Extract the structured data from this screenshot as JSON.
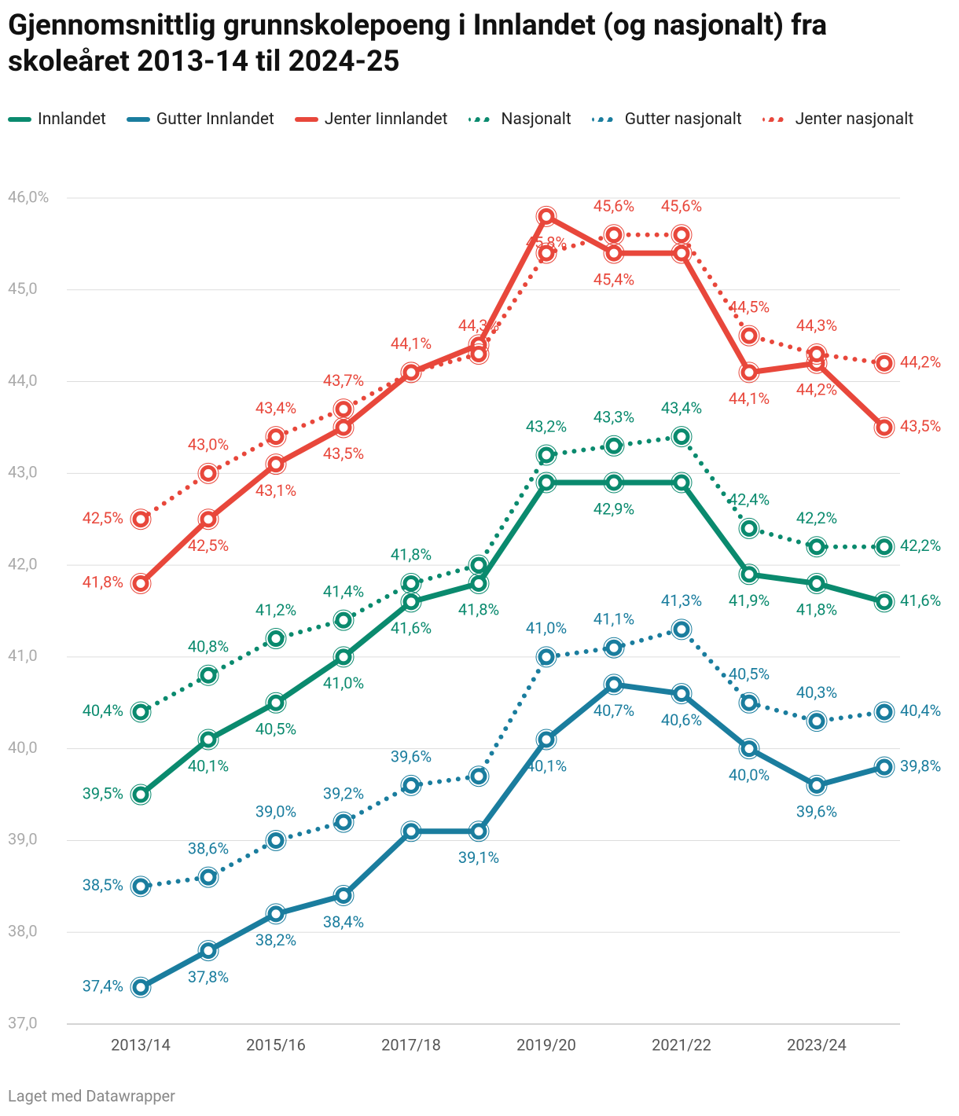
{
  "chart_data": {
    "type": "line",
    "title": "Gjennomsnittlig grunnskolepoeng i Innlandet (og nasjonalt) fra skoleåret 2013-14 til 2024-25",
    "footer": "Laget med Datawrapper",
    "categories": [
      "2013/14",
      null,
      "2015/16",
      null,
      "2017/18",
      null,
      "2019/20",
      null,
      "2021/22",
      null,
      "2023/24",
      null
    ],
    "ylim": [
      37,
      46
    ],
    "yticks": [
      {
        "value": 37,
        "label": "37,0"
      },
      {
        "value": 38,
        "label": "38,0"
      },
      {
        "value": 39,
        "label": "39,0"
      },
      {
        "value": 40,
        "label": "40,0"
      },
      {
        "value": 41,
        "label": "41,0"
      },
      {
        "value": 42,
        "label": "42,0"
      },
      {
        "value": 43,
        "label": "43,0"
      },
      {
        "value": 44,
        "label": "44,0"
      },
      {
        "value": 45,
        "label": "45,0"
      },
      {
        "value": 46,
        "label": "46,0%"
      }
    ],
    "grid": true,
    "series": [
      {
        "name": "Innlandet",
        "color": "#0a8a6e",
        "style": "solid",
        "values": [
          39.5,
          40.1,
          40.5,
          41.0,
          41.6,
          41.8,
          42.9,
          42.9,
          42.9,
          41.9,
          41.8,
          41.6
        ],
        "value_labels": [
          "39,5%",
          "40,1%",
          "40,5%",
          "41,0%",
          "41,6%",
          "41,8%",
          null,
          "42,9%",
          null,
          "41,9%",
          "41,8%",
          "41,6%"
        ]
      },
      {
        "name": "Gutter Innlandet",
        "color": "#1a7d9e",
        "style": "solid",
        "values": [
          37.4,
          37.8,
          38.2,
          38.4,
          39.1,
          39.1,
          40.1,
          40.7,
          40.6,
          40.0,
          39.6,
          39.8
        ],
        "value_labels": [
          "37,4%",
          "37,8%",
          "38,2%",
          "38,4%",
          null,
          "39,1%",
          "40,1%",
          "40,7%",
          "40,6%",
          "40,0%",
          "39,6%",
          "39,8%"
        ]
      },
      {
        "name": "Jenter Iinnlandet",
        "color": "#e8473b",
        "style": "solid",
        "values": [
          41.8,
          42.5,
          43.1,
          43.5,
          44.1,
          44.4,
          45.8,
          45.4,
          45.4,
          44.1,
          44.2,
          43.5
        ],
        "value_labels": [
          "41,8%",
          "42,5%",
          "43,1%",
          "43,5%",
          null,
          null,
          "45,8%",
          "45,4%",
          null,
          "44,1%",
          "44,2%",
          "43,5%"
        ]
      },
      {
        "name": "Nasjonalt",
        "color": "#0a8a6e",
        "style": "dotted",
        "values": [
          40.4,
          40.8,
          41.2,
          41.4,
          41.8,
          42.0,
          43.2,
          43.3,
          43.4,
          42.4,
          42.2,
          42.2
        ],
        "value_labels": [
          "40,4%",
          "40,8%",
          "41,2%",
          "41,4%",
          "41,8%",
          null,
          "43,2%",
          "43,3%",
          "43,4%",
          "42,4%",
          "42,2%",
          "42,2%"
        ]
      },
      {
        "name": "Gutter nasjonalt",
        "color": "#1a7d9e",
        "style": "dotted",
        "values": [
          38.5,
          38.6,
          39.0,
          39.2,
          39.6,
          39.7,
          41.0,
          41.1,
          41.3,
          40.5,
          40.3,
          40.4
        ],
        "value_labels": [
          "38,5%",
          "38,6%",
          "39,0%",
          "39,2%",
          "39,6%",
          null,
          "41,0%",
          "41,1%",
          "41,3%",
          "40,5%",
          "40,3%",
          "40,4%"
        ]
      },
      {
        "name": "Jenter nasjonalt",
        "color": "#e8473b",
        "style": "dotted",
        "values": [
          42.5,
          43.0,
          43.4,
          43.7,
          44.1,
          44.3,
          45.4,
          45.6,
          45.6,
          44.5,
          44.3,
          44.2
        ],
        "value_labels": [
          "42,5%",
          "43,0%",
          "43,4%",
          "43,7%",
          "44,1%",
          "44,3%",
          null,
          "45,6%",
          "45,6%",
          "44,5%",
          "44,3%",
          "44,2%"
        ]
      }
    ]
  }
}
